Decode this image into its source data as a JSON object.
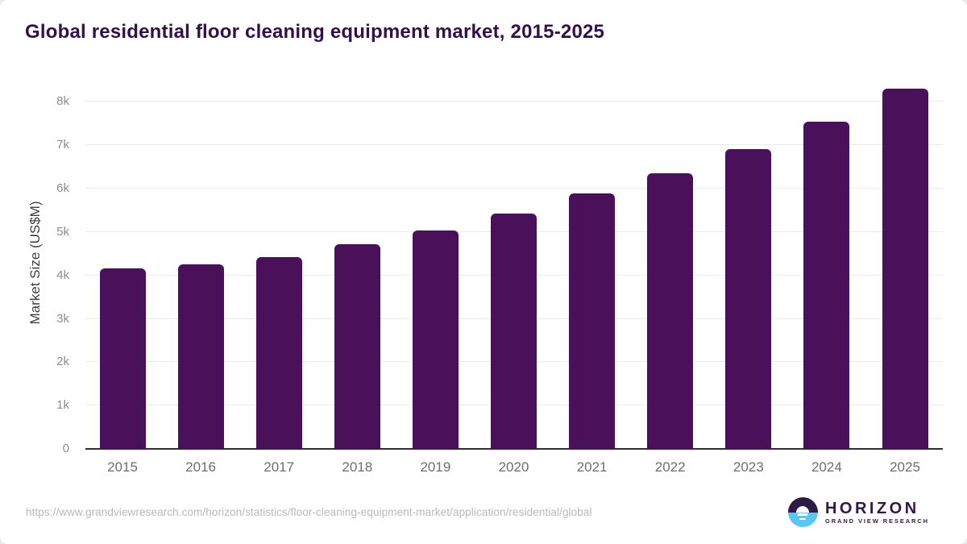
{
  "header": {
    "title": "Global residential floor cleaning equipment market, 2015-2025"
  },
  "chart_data": {
    "type": "bar",
    "title": "Global residential floor cleaning equipment market, 2015-2025",
    "categories": [
      "2015",
      "2016",
      "2017",
      "2018",
      "2019",
      "2020",
      "2021",
      "2022",
      "2023",
      "2024",
      "2025"
    ],
    "values": [
      4170,
      4245,
      4430,
      4715,
      5040,
      5420,
      5880,
      6360,
      6915,
      7535,
      8295
    ],
    "xlabel": "",
    "ylabel": "Market Size (US$M)",
    "ylim": [
      0,
      8600
    ],
    "yticks": [
      0,
      1000,
      2000,
      3000,
      4000,
      5000,
      6000,
      7000,
      8000
    ],
    "ytick_labels": [
      "0",
      "1k",
      "2k",
      "3k",
      "4k",
      "5k",
      "6k",
      "7k",
      "8k"
    ],
    "grid": true,
    "legend": false,
    "bar_color": "#4a1059"
  },
  "footer": {
    "source_url": "https://www.grandviewresearch.com/horizon/statistics/floor-cleaning-equipment-market/application/residential/global",
    "logo": {
      "name": "HORIZON",
      "subtitle": "GRAND VIEW RESEARCH"
    }
  },
  "colors": {
    "background": "#ffffff",
    "bar": "#4a1059",
    "title": "#31104b",
    "axis_title": "#3f3f3f",
    "ytick": "#8c8c8c",
    "xtick": "#6e6e6e",
    "gridline": "#ebebeb",
    "baseline": "#2f2f2f",
    "url": "#b8b8b8",
    "logo_purple": "#2e1a47",
    "logo_blue": "#5bc6f0"
  }
}
